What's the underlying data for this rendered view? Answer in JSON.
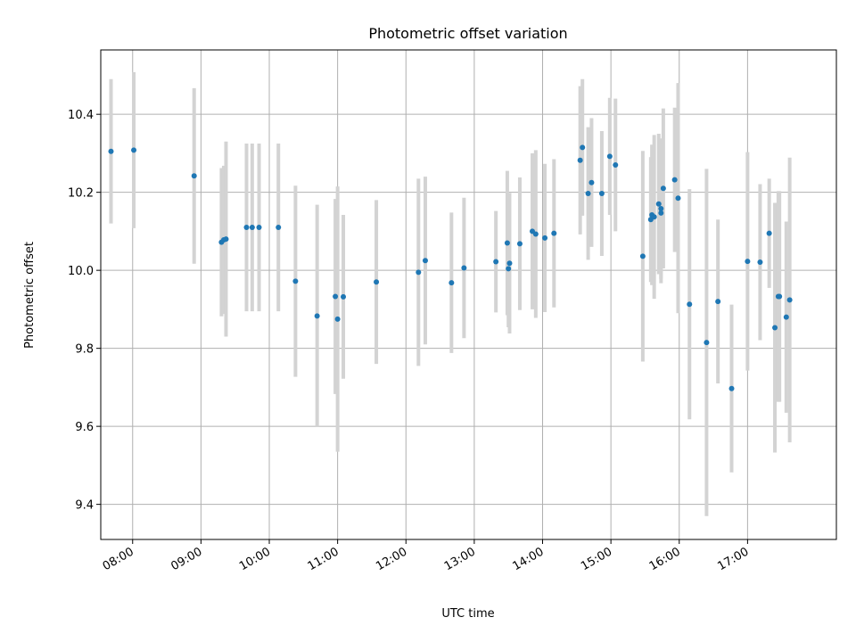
{
  "chart_data": {
    "type": "scatter",
    "title": "Photometric offset variation",
    "xlabel": "UTC time",
    "ylabel": "Photometric offset",
    "xlim": [
      "07:32",
      "18:18"
    ],
    "ylim": [
      9.31,
      10.565
    ],
    "grid": true,
    "legend": "none",
    "x_ticks": [
      "08:00",
      "09:00",
      "10:00",
      "11:00",
      "12:00",
      "13:00",
      "14:00",
      "15:00",
      "16:00",
      "17:00"
    ],
    "y_ticks": [
      9.4,
      9.6,
      9.8,
      10.0,
      10.2,
      10.4
    ],
    "y_tick_labels": [
      "9.4",
      "9.6",
      "9.8",
      "10.0",
      "10.2",
      "10.4"
    ],
    "colors": {
      "point": "#1f77b4",
      "errorbar": "#d3d3d3"
    },
    "series": [
      {
        "x": [
          "07:41",
          "08:01",
          "08:54",
          "09:18",
          "09:20",
          "09:22",
          "09:40",
          "09:45",
          "09:51",
          "10:08",
          "10:23",
          "10:42",
          "10:58",
          "11:00",
          "11:05",
          "11:34",
          "12:11",
          "12:17",
          "12:40",
          "12:51",
          "13:19",
          "13:29",
          "13:30",
          "13:31",
          "13:40",
          "13:51",
          "13:54",
          "14:02",
          "14:10",
          "14:33",
          "14:35",
          "14:40",
          "14:43",
          "14:52",
          "14:59",
          "15:04",
          "15:28",
          "15:35",
          "15:36",
          "15:38",
          "15:42",
          "15:44",
          "15:44",
          "15:46",
          "15:56",
          "15:59",
          "16:09",
          "16:24",
          "16:34",
          "16:46",
          "17:00",
          "17:11",
          "17:19",
          "17:24",
          "17:27",
          "17:28",
          "17:34",
          "17:37"
        ],
        "y": [
          10.305,
          10.308,
          10.242,
          10.072,
          10.078,
          10.08,
          10.11,
          10.11,
          10.11,
          10.11,
          9.972,
          9.883,
          9.933,
          9.875,
          9.932,
          9.97,
          9.995,
          10.025,
          9.968,
          10.006,
          10.022,
          10.07,
          10.004,
          10.018,
          10.068,
          10.1,
          10.093,
          10.083,
          10.095,
          10.282,
          10.315,
          10.197,
          10.225,
          10.197,
          10.292,
          10.27,
          10.036,
          10.13,
          10.142,
          10.137,
          10.17,
          10.158,
          10.147,
          10.21,
          10.232,
          10.185,
          9.913,
          9.815,
          9.92,
          9.697,
          10.023,
          10.021,
          10.095,
          9.853,
          9.933,
          9.933,
          9.88,
          9.924
        ],
        "yerr": [
          0.185,
          0.2,
          0.225,
          0.19,
          0.19,
          0.25,
          0.215,
          0.215,
          0.215,
          0.215,
          0.245,
          0.285,
          0.25,
          0.34,
          0.21,
          0.21,
          0.24,
          0.215,
          0.18,
          0.18,
          0.13,
          0.185,
          0.15,
          0.18,
          0.17,
          0.2,
          0.215,
          0.19,
          0.19,
          0.19,
          0.175,
          0.17,
          0.165,
          0.16,
          0.15,
          0.17,
          0.27,
          0.16,
          0.18,
          0.21,
          0.18,
          0.18,
          0.18,
          0.205,
          0.185,
          0.295,
          0.295,
          0.445,
          0.21,
          0.215,
          0.28,
          0.2,
          0.14,
          0.32,
          0.27,
          0.27,
          0.245,
          0.365
        ]
      }
    ]
  }
}
